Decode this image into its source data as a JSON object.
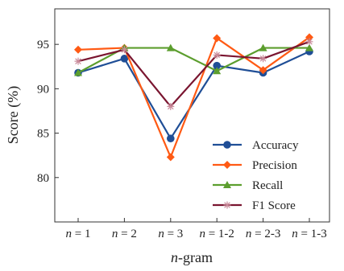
{
  "chart_data": {
    "type": "line",
    "categories": [
      "n = 1",
      "n = 2",
      "n = 3",
      "n = 1-2",
      "n = 2-3",
      "n = 1-3"
    ],
    "xlabel": "n-gram",
    "ylabel": "Score (%)",
    "ylim": [
      75,
      99
    ],
    "yticks": [
      80,
      85,
      90,
      95
    ],
    "grid": false,
    "legend_position": "lower-right",
    "series": [
      {
        "name": "Accuracy",
        "color": "#1f4e96",
        "marker": "circle",
        "values": [
          91.8,
          93.4,
          84.4,
          92.6,
          91.8,
          94.2
        ]
      },
      {
        "name": "Precision",
        "color": "#ff5a14",
        "marker": "diamond",
        "values": [
          94.4,
          94.6,
          82.3,
          95.7,
          92.1,
          95.8
        ]
      },
      {
        "name": "Recall",
        "color": "#5c9e2e",
        "marker": "triangle",
        "values": [
          91.8,
          94.6,
          94.6,
          92.0,
          94.6,
          94.6
        ]
      },
      {
        "name": "F1 Score",
        "color": "#7a1530",
        "marker": "star",
        "values": [
          93.1,
          94.4,
          88.0,
          93.8,
          93.4,
          95.3
        ]
      }
    ]
  }
}
